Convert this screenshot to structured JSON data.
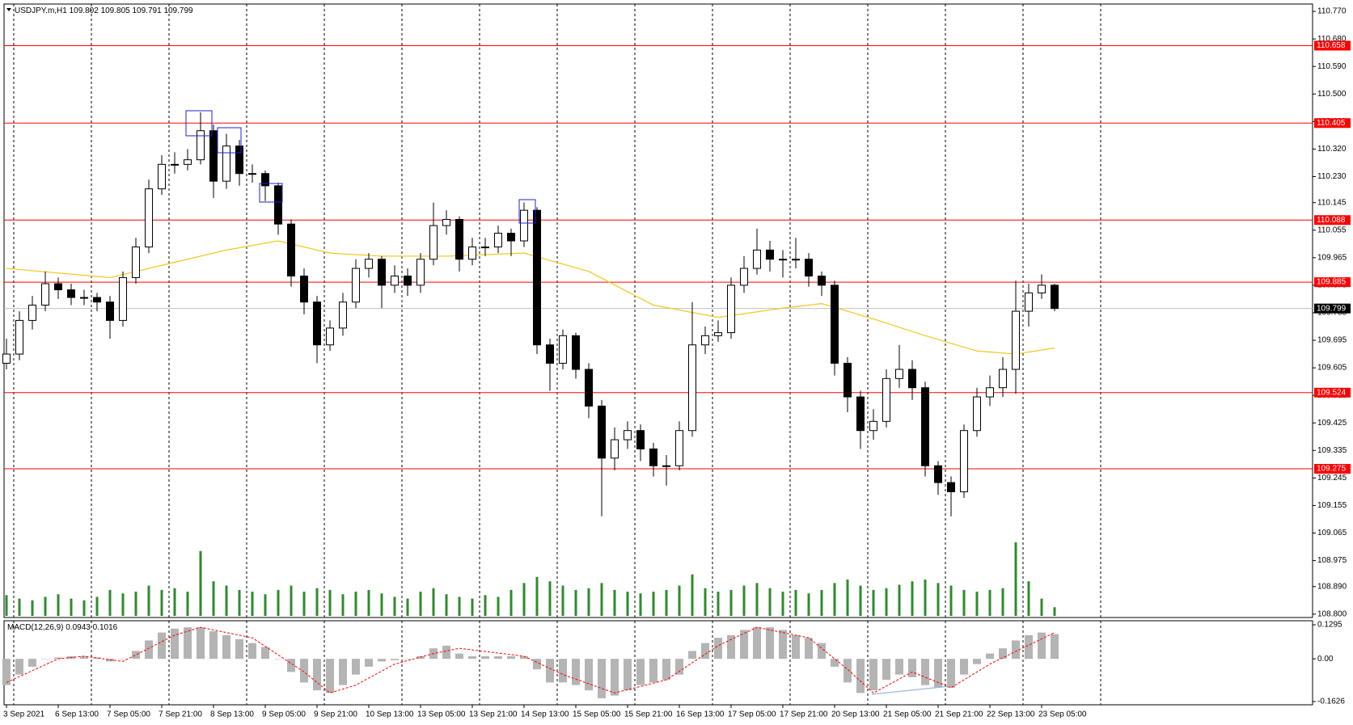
{
  "chart_data": {
    "type": "candlestick",
    "symbol": "USDJPY.m,H1",
    "quote": [
      109.802,
      109.805,
      109.791,
      109.799
    ],
    "categories": [
      "3 Sep 2021",
      null,
      null,
      null,
      "6 Sep 13:00",
      null,
      null,
      null,
      "7 Sep 05:00",
      null,
      null,
      null,
      "7 Sep 21:00",
      null,
      null,
      null,
      "8 Sep 13:00",
      null,
      null,
      null,
      "9 Sep 05:00",
      null,
      null,
      null,
      "9 Sep 21:00",
      null,
      null,
      null,
      "10 Sep 13:00",
      null,
      null,
      null,
      "13 Sep 05:00",
      null,
      null,
      null,
      "13 Sep 21:00",
      null,
      null,
      null,
      "14 Sep 13:00",
      null,
      null,
      null,
      "15 Sep 05:00",
      null,
      null,
      null,
      "15 Sep 21:00",
      null,
      null,
      null,
      "16 Sep 13:00",
      null,
      null,
      null,
      "17 Sep 05:00",
      null,
      null,
      null,
      "17 Sep 21:00",
      null,
      null,
      null,
      "20 Sep 13:00",
      null,
      null,
      null,
      "21 Sep 05:00",
      null,
      null,
      null,
      "21 Sep 21:00",
      null,
      null,
      null,
      "22 Sep 13:00",
      null,
      null,
      null,
      "23 Sep 05:00",
      null
    ],
    "open": [
      109.62,
      109.65,
      109.76,
      109.81,
      109.88,
      109.86,
      109.835,
      109.835,
      109.82,
      109.76,
      109.9,
      110.0,
      110.19,
      110.27,
      110.27,
      110.285,
      110.38,
      110.215,
      110.33,
      110.24,
      110.24,
      110.2,
      110.075,
      109.905,
      109.82,
      109.68,
      109.735,
      109.82,
      109.93,
      109.96,
      109.875,
      109.905,
      109.875,
      109.96,
      110.07,
      110.09,
      109.96,
      110.0,
      110.0,
      110.045,
      110.02,
      110.12,
      109.68,
      109.62,
      109.71,
      109.6,
      109.48,
      109.31,
      109.37,
      109.4,
      109.34,
      109.285,
      109.285,
      109.4,
      109.68,
      109.71,
      109.72,
      109.875,
      109.93,
      109.99,
      109.96,
      109.96,
      109.96,
      109.905,
      109.875,
      109.62,
      109.51,
      109.4,
      109.43,
      109.57,
      109.6,
      109.54,
      109.285,
      109.23,
      109.2,
      109.4,
      109.51,
      109.54,
      109.6,
      109.79,
      109.85,
      109.875
    ],
    "high": [
      109.7,
      109.79,
      109.84,
      109.92,
      109.9,
      109.88,
      109.86,
      109.85,
      109.84,
      109.92,
      110.03,
      110.22,
      110.3,
      110.31,
      110.32,
      110.44,
      110.4,
      110.37,
      110.35,
      110.27,
      110.25,
      110.21,
      110.09,
      109.93,
      109.84,
      109.76,
      109.85,
      109.96,
      109.98,
      109.97,
      109.94,
      109.93,
      109.98,
      110.145,
      110.12,
      110.1,
      110.03,
      110.03,
      110.07,
      110.06,
      110.145,
      110.13,
      109.7,
      109.73,
      109.72,
      109.62,
      109.5,
      109.41,
      109.43,
      109.42,
      109.36,
      109.32,
      109.43,
      109.82,
      109.74,
      109.76,
      109.9,
      109.97,
      110.06,
      110.02,
      109.99,
      110.03,
      109.98,
      109.92,
      109.89,
      109.64,
      109.53,
      109.47,
      109.6,
      109.68,
      109.63,
      109.56,
      109.3,
      109.25,
      109.42,
      109.54,
      109.58,
      109.64,
      109.89,
      109.88,
      109.91,
      109.88
    ],
    "low": [
      109.6,
      109.63,
      109.73,
      109.79,
      109.83,
      109.81,
      109.81,
      109.79,
      109.7,
      109.74,
      109.88,
      109.98,
      110.17,
      110.24,
      110.25,
      110.27,
      110.16,
      110.19,
      110.2,
      110.21,
      110.15,
      110.04,
      109.87,
      109.78,
      109.62,
      109.66,
      109.71,
      109.8,
      109.9,
      109.8,
      109.85,
      109.84,
      109.85,
      109.94,
      110.04,
      109.92,
      109.94,
      109.97,
      109.98,
      109.97,
      110.0,
      109.65,
      109.53,
      109.6,
      109.57,
      109.44,
      109.12,
      109.27,
      109.34,
      109.3,
      109.25,
      109.22,
      109.27,
      109.38,
      109.65,
      109.69,
      109.7,
      109.85,
      109.91,
      109.92,
      109.9,
      109.93,
      109.87,
      109.84,
      109.58,
      109.46,
      109.34,
      109.37,
      109.41,
      109.54,
      109.5,
      109.25,
      109.19,
      109.12,
      109.18,
      109.38,
      109.48,
      109.51,
      109.52,
      109.74,
      109.83,
      109.79
    ],
    "close": [
      109.65,
      109.76,
      109.81,
      109.88,
      109.86,
      109.835,
      109.835,
      109.82,
      109.76,
      109.9,
      110.0,
      110.19,
      110.27,
      110.27,
      110.285,
      110.38,
      110.215,
      110.33,
      110.24,
      110.24,
      110.2,
      110.075,
      109.905,
      109.82,
      109.68,
      109.735,
      109.82,
      109.93,
      109.96,
      109.875,
      109.905,
      109.875,
      109.96,
      110.07,
      110.09,
      109.96,
      110.0,
      110.0,
      110.045,
      110.02,
      110.12,
      109.68,
      109.62,
      109.71,
      109.6,
      109.48,
      109.31,
      109.37,
      109.4,
      109.34,
      109.285,
      109.285,
      109.4,
      109.68,
      109.71,
      109.72,
      109.875,
      109.93,
      109.99,
      109.96,
      109.96,
      109.96,
      109.905,
      109.875,
      109.62,
      109.51,
      109.4,
      109.43,
      109.57,
      109.6,
      109.54,
      109.285,
      109.23,
      109.2,
      109.4,
      109.51,
      109.54,
      109.6,
      109.79,
      109.85,
      109.875,
      109.799
    ],
    "ylim": [
      108.789,
      110.794
    ],
    "yticks": [
      {
        "value": 110.77,
        "label": "110.770"
      },
      {
        "value": 110.68,
        "label": "110.680"
      },
      {
        "value": 110.59,
        "label": "110.590"
      },
      {
        "value": 110.5,
        "label": "110.500"
      },
      {
        "value": 110.41,
        "label": "110.410"
      },
      {
        "value": 110.32,
        "label": "110.320"
      },
      {
        "value": 110.23,
        "label": "110.230"
      },
      {
        "value": 110.145,
        "label": "110.145"
      },
      {
        "value": 110.055,
        "label": "110.055"
      },
      {
        "value": 109.965,
        "label": "109.965"
      },
      {
        "value": 109.875,
        "label": "109.875"
      },
      {
        "value": 109.785,
        "label": "109.785"
      },
      {
        "value": 109.695,
        "label": "109.695"
      },
      {
        "value": 109.605,
        "label": "109.605"
      },
      {
        "value": 109.515,
        "label": "109.515"
      },
      {
        "value": 109.425,
        "label": "109.425"
      },
      {
        "value": 109.335,
        "label": "109.335"
      },
      {
        "value": 109.245,
        "label": "109.245"
      },
      {
        "value": 109.155,
        "label": "109.155"
      },
      {
        "value": 109.065,
        "label": "109.065"
      },
      {
        "value": 108.975,
        "label": "108.975"
      },
      {
        "value": 108.89,
        "label": "108.890"
      },
      {
        "value": 108.8,
        "label": "108.800"
      }
    ],
    "levels": [
      110.658,
      110.405,
      110.088,
      109.885,
      109.524,
      109.275
    ],
    "level_color": "#ff0000",
    "last_price": 109.799,
    "ma": {
      "color": "#f0c81e",
      "x": [
        0,
        8,
        13,
        17,
        21,
        25,
        29,
        34,
        40,
        45,
        50,
        55,
        60,
        63,
        67,
        71,
        75,
        78,
        81
      ],
      "values": [
        109.93,
        109.9,
        109.95,
        109.99,
        110.02,
        109.98,
        109.97,
        109.97,
        109.98,
        109.92,
        109.81,
        109.77,
        109.8,
        109.815,
        109.765,
        109.71,
        109.66,
        109.65,
        109.67
      ]
    },
    "volume": {
      "color": "#2e8b2e",
      "values": [
        24,
        20,
        18,
        22,
        25,
        20,
        18,
        22,
        30,
        26,
        28,
        35,
        30,
        32,
        28,
        75,
        40,
        35,
        30,
        28,
        25,
        30,
        35,
        28,
        32,
        30,
        25,
        28,
        30,
        26,
        22,
        20,
        28,
        32,
        25,
        22,
        20,
        24,
        22,
        30,
        38,
        45,
        40,
        35,
        30,
        32,
        38,
        30,
        28,
        26,
        28,
        30,
        35,
        48,
        32,
        28,
        30,
        35,
        38,
        32,
        28,
        30,
        26,
        30,
        38,
        42,
        35,
        30,
        32,
        36,
        40,
        42,
        38,
        35,
        30,
        28,
        30,
        32,
        85,
        40,
        20,
        10
      ]
    },
    "macd": {
      "label": "MACD(12,26,9)",
      "values_printed": [
        0.0943,
        0.1016
      ],
      "hist_color": "#b4b4b4",
      "signal_color": "#ff0000",
      "histogram": [
        -0.1,
        -0.06,
        -0.03,
        0.0,
        0.005,
        0.01,
        0.01,
        0.005,
        -0.01,
        0.0,
        0.03,
        0.07,
        0.1,
        0.115,
        0.12,
        0.12,
        0.105,
        0.09,
        0.075,
        0.06,
        0.045,
        0.0,
        -0.05,
        -0.09,
        -0.12,
        -0.13,
        -0.1,
        -0.06,
        -0.03,
        -0.01,
        -0.005,
        0.0,
        0.01,
        0.04,
        0.05,
        0.02,
        0.01,
        0.01,
        0.01,
        0.01,
        0.01,
        -0.04,
        -0.09,
        -0.09,
        -0.1,
        -0.12,
        -0.15,
        -0.14,
        -0.12,
        -0.1,
        -0.09,
        -0.08,
        -0.06,
        0.03,
        0.06,
        0.08,
        0.09,
        0.11,
        0.12,
        0.12,
        0.11,
        0.09,
        0.08,
        0.06,
        -0.03,
        -0.09,
        -0.13,
        -0.12,
        -0.08,
        -0.06,
        -0.07,
        -0.1,
        -0.11,
        -0.11,
        -0.06,
        -0.02,
        0.02,
        0.04,
        0.07,
        0.09,
        0.1,
        0.094
      ],
      "signal": {
        "x": [
          0,
          4,
          6,
          9,
          13,
          15,
          19,
          23,
          25,
          27,
          30,
          33,
          35,
          40,
          43,
          47,
          51,
          55,
          58,
          62,
          65,
          67,
          70,
          73,
          76,
          81
        ],
        "values": [
          -0.09,
          0.0,
          0.01,
          -0.01,
          0.09,
          0.12,
          0.08,
          -0.05,
          -0.13,
          -0.1,
          -0.02,
          0.02,
          0.04,
          0.01,
          -0.06,
          -0.13,
          -0.08,
          0.05,
          0.12,
          0.08,
          -0.04,
          -0.13,
          -0.05,
          -0.11,
          -0.02,
          0.1
        ]
      },
      "ylim": [
        -0.175,
        0.145
      ],
      "yticks": [
        0.1295,
        {
          "value": 0,
          "label": "0.00"
        },
        -0.1626
      ]
    }
  }
}
